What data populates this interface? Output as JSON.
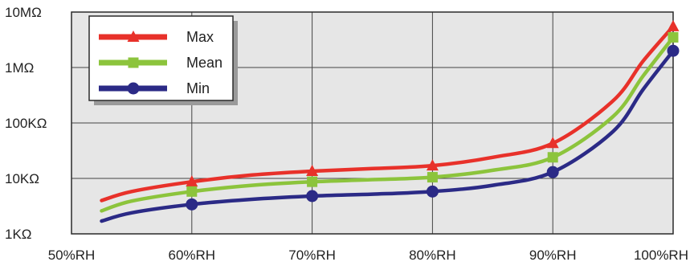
{
  "chart_data": {
    "type": "line",
    "title": "",
    "xlabel": "",
    "ylabel": "",
    "x_tick_labels": [
      "50%RH",
      "60%RH",
      "70%RH",
      "80%RH",
      "90%RH",
      "100%RH"
    ],
    "y_tick_labels": [
      "1KΩ",
      "10KΩ",
      "100KΩ",
      "1MΩ",
      "10MΩ"
    ],
    "x_ticks": [
      50,
      60,
      70,
      80,
      90,
      100
    ],
    "y_ticks": [
      1000,
      10000,
      100000,
      1000000,
      10000000
    ],
    "xlim": [
      50,
      100
    ],
    "ylim": [
      1000,
      10000000
    ],
    "y_scale": "log",
    "grid": true,
    "legend_position": "top-left",
    "series": [
      {
        "name": "Max",
        "color": "#e8312a",
        "marker": "triangle",
        "curve_x": [
          52.5,
          55,
          60,
          65,
          70,
          75,
          80,
          85,
          90,
          95,
          97.5,
          100
        ],
        "curve_y": [
          4000,
          5800,
          8700,
          11500,
          13500,
          15000,
          17000,
          24000,
          43000,
          250000,
          1300000,
          5500000
        ],
        "marker_x": [
          60,
          70,
          80,
          90,
          100
        ],
        "marker_y": [
          8700,
          13500,
          17000,
          43000,
          5500000
        ]
      },
      {
        "name": "Mean",
        "color": "#8cc43c",
        "marker": "square",
        "curve_x": [
          52.5,
          55,
          60,
          65,
          70,
          75,
          80,
          85,
          90,
          95,
          97.5,
          100
        ],
        "curve_y": [
          2600,
          3900,
          5800,
          7500,
          8700,
          9500,
          10500,
          14000,
          24000,
          130000,
          700000,
          3500000
        ],
        "marker_x": [
          60,
          70,
          80,
          90,
          100
        ],
        "marker_y": [
          5800,
          8700,
          10500,
          24000,
          3500000
        ]
      },
      {
        "name": "Min",
        "color": "#2b2a86",
        "marker": "circle",
        "curve_x": [
          52.5,
          55,
          60,
          65,
          70,
          75,
          80,
          85,
          90,
          95,
          97.5,
          100
        ],
        "curve_y": [
          1700,
          2400,
          3400,
          4200,
          4800,
          5200,
          5800,
          7500,
          13000,
          70000,
          400000,
          2000000
        ],
        "marker_x": [
          60,
          70,
          80,
          90,
          100
        ],
        "marker_y": [
          3400,
          4800,
          5800,
          13000,
          2000000
        ]
      }
    ]
  }
}
